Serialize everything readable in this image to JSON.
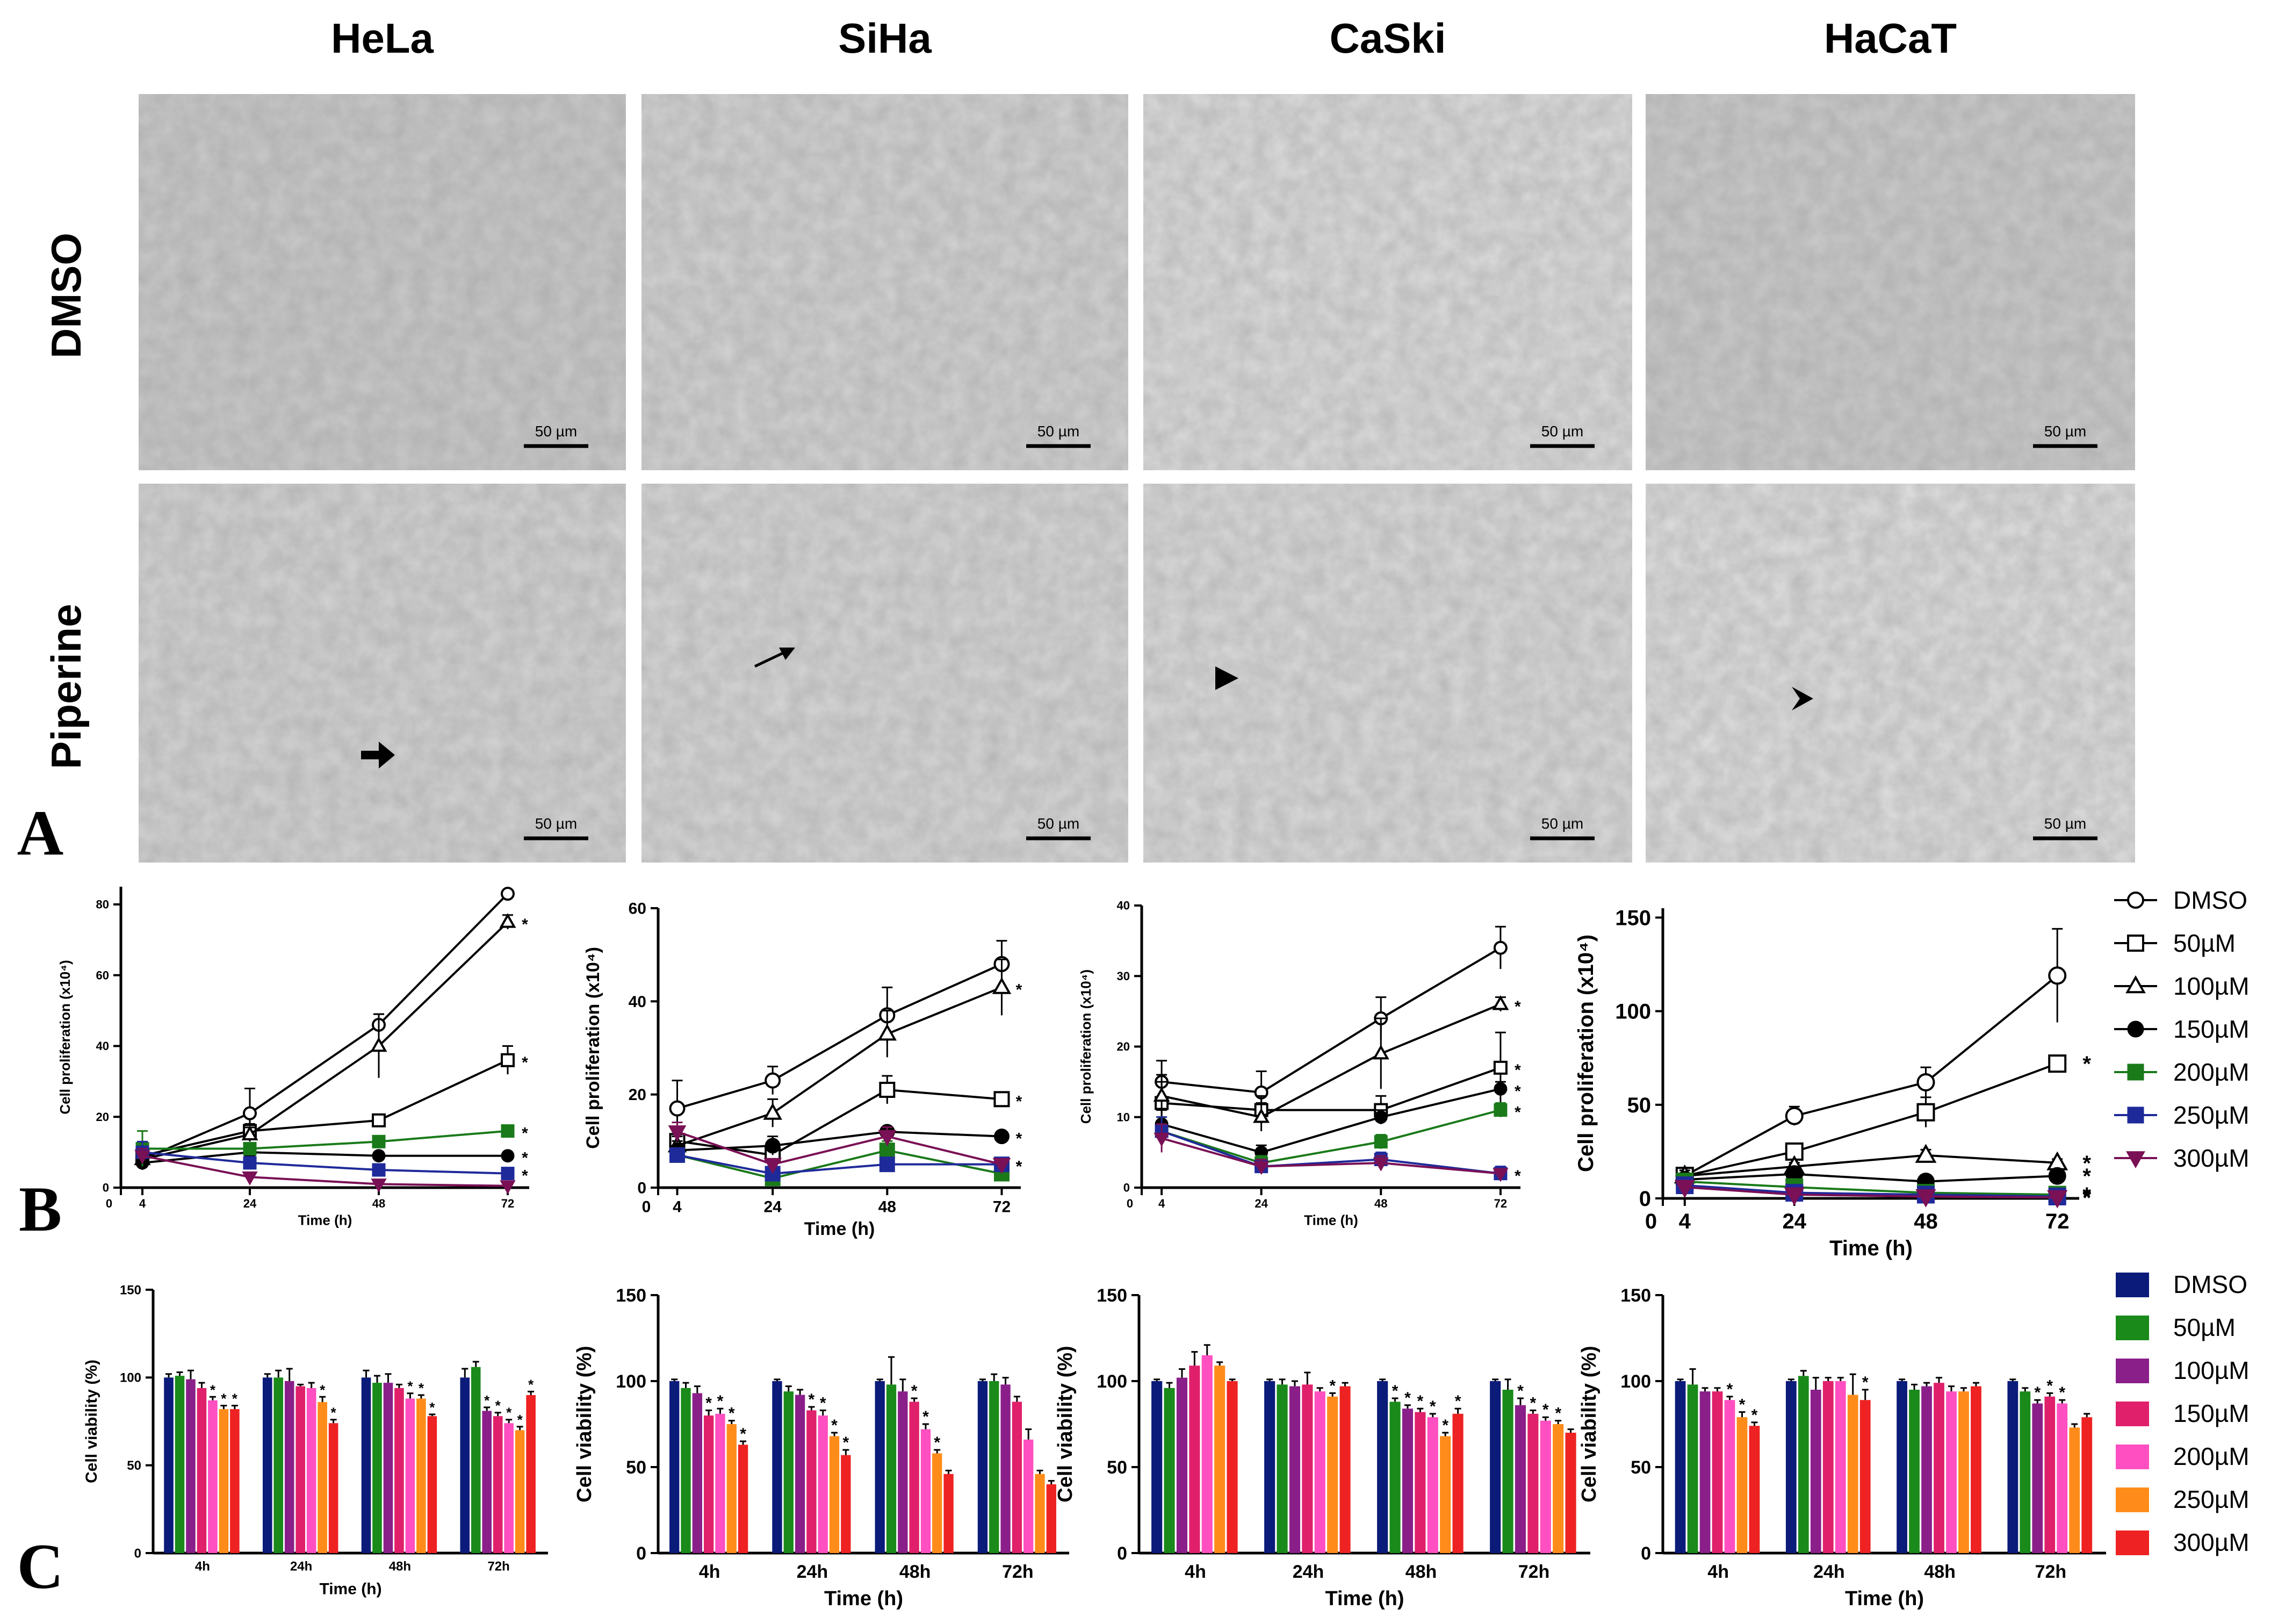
{
  "panel_letters": [
    "A",
    "B",
    "C"
  ],
  "cell_lines": [
    "HeLa",
    "SiHa",
    "CaSki",
    "HaCaT"
  ],
  "treatments": [
    "DMSO",
    "Piperine"
  ],
  "scale_bar_label": "50 µm",
  "colors": {
    "DMSO": "#000000",
    "c50": "#000000",
    "c100": "#000000",
    "c150": "#000000",
    "c200": "#1a7a1a",
    "c250": "#1f2a9a",
    "c300": "#7a1055",
    "bar_DMSO": "#0b1b7a",
    "bar_50": "#1a8a1a",
    "bar_100": "#8a1f8a",
    "bar_150": "#e0206a",
    "bar_200": "#ff4fc0",
    "bar_250": "#ff8c1a",
    "bar_300": "#ee2222"
  },
  "legend_line": [
    {
      "label": "DMSO",
      "marker": "circle-open",
      "color": "#000000"
    },
    {
      "label": "50µM",
      "marker": "square-open",
      "color": "#000000"
    },
    {
      "label": "100µM",
      "marker": "triangle-open",
      "color": "#000000"
    },
    {
      "label": "150µM",
      "marker": "circle",
      "color": "#000000"
    },
    {
      "label": "200µM",
      "marker": "square",
      "color": "#1a7a1a"
    },
    {
      "label": "250µM",
      "marker": "square",
      "color": "#1f2a9a"
    },
    {
      "label": "300µM",
      "marker": "triangle-down",
      "color": "#7a1055"
    }
  ],
  "legend_bar": [
    {
      "label": "DMSO",
      "color": "#0b1b7a"
    },
    {
      "label": "50µM",
      "color": "#1a8a1a"
    },
    {
      "label": "100µM",
      "color": "#8a1f8a"
    },
    {
      "label": "150µM",
      "color": "#e0206a"
    },
    {
      "label": "200µM",
      "color": "#ff4fc0"
    },
    {
      "label": "250µM",
      "color": "#ff8c1a"
    },
    {
      "label": "300µM",
      "color": "#ee2222"
    }
  ],
  "chart_data": [
    {
      "type": "line",
      "panel": "B",
      "cell_line": "HeLa",
      "xlabel": "Time (h)",
      "ylabel": "Cell proliferation (x10⁴)",
      "x": [
        4,
        24,
        48,
        72
      ],
      "x_ticks": [
        0,
        4,
        24,
        48,
        72
      ],
      "ylim": [
        0,
        85
      ],
      "y_ticks": [
        0,
        20,
        40,
        60,
        80
      ],
      "series": [
        {
          "name": "DMSO",
          "values": [
            8,
            21,
            46,
            83
          ],
          "err": [
            2,
            7,
            3,
            1
          ]
        },
        {
          "name": "50µM",
          "values": [
            9,
            16,
            19,
            36
          ],
          "err": [
            2,
            2,
            1,
            4
          ]
        },
        {
          "name": "100µM",
          "values": [
            8,
            15,
            40,
            75
          ],
          "err": [
            2,
            2,
            9,
            2
          ]
        },
        {
          "name": "150µM",
          "values": [
            7,
            10,
            9,
            9
          ],
          "err": [
            2,
            1,
            1,
            1
          ]
        },
        {
          "name": "200µM",
          "values": [
            11,
            11,
            13,
            16
          ],
          "err": [
            5,
            1,
            1,
            1
          ]
        },
        {
          "name": "250µM",
          "values": [
            10,
            7,
            5,
            4
          ],
          "err": [
            3,
            1,
            1,
            1
          ]
        },
        {
          "name": "300µM",
          "values": [
            9,
            3,
            1,
            0.5
          ],
          "err": [
            2,
            1,
            0.5,
            0.5
          ]
        }
      ],
      "annotations": [
        "*",
        "*",
        "*",
        "*",
        "*"
      ]
    },
    {
      "type": "line",
      "panel": "B",
      "cell_line": "SiHa",
      "xlabel": "Time (h)",
      "ylabel": "Cell proliferation (x10⁴)",
      "x": [
        4,
        24,
        48,
        72
      ],
      "x_ticks": [
        0,
        4,
        24,
        48,
        72
      ],
      "ylim": [
        0,
        60
      ],
      "y_ticks": [
        0,
        20,
        40,
        60
      ],
      "series": [
        {
          "name": "DMSO",
          "values": [
            17,
            23,
            37,
            48
          ],
          "err": [
            6,
            3,
            6,
            5
          ]
        },
        {
          "name": "50µM",
          "values": [
            10,
            7,
            21,
            19
          ],
          "err": [
            2,
            2,
            3,
            1
          ]
        },
        {
          "name": "100µM",
          "values": [
            9,
            16,
            33,
            43
          ],
          "err": [
            2,
            3,
            5,
            6
          ]
        },
        {
          "name": "150µM",
          "values": [
            8,
            9,
            12,
            11
          ],
          "err": [
            2,
            2,
            1,
            1
          ]
        },
        {
          "name": "200µM",
          "values": [
            7,
            2,
            8,
            3
          ],
          "err": [
            1,
            1,
            2,
            1
          ]
        },
        {
          "name": "250µM",
          "values": [
            7,
            3,
            5,
            5
          ],
          "err": [
            1,
            1,
            1,
            1
          ]
        },
        {
          "name": "300µM",
          "values": [
            12,
            5,
            11,
            5
          ],
          "err": [
            2,
            1,
            2,
            1
          ]
        }
      ],
      "annotations": [
        "*",
        "*",
        "*",
        "*",
        "*"
      ]
    },
    {
      "type": "line",
      "panel": "B",
      "cell_line": "CaSki",
      "xlabel": "Time (h)",
      "ylabel": "Cell proliferation (x10⁴)",
      "x": [
        4,
        24,
        48,
        72
      ],
      "x_ticks": [
        0,
        4,
        24,
        48,
        72
      ],
      "ylim": [
        0,
        40
      ],
      "y_ticks": [
        0,
        10,
        20,
        30,
        40
      ],
      "series": [
        {
          "name": "DMSO",
          "values": [
            15,
            13.5,
            24,
            34
          ],
          "err": [
            3,
            3,
            3,
            3
          ]
        },
        {
          "name": "50µM",
          "values": [
            12,
            11,
            11,
            17
          ],
          "err": [
            3,
            2,
            2,
            5
          ]
        },
        {
          "name": "100µM",
          "values": [
            13,
            10,
            19,
            26
          ],
          "err": [
            3,
            2,
            5,
            1
          ]
        },
        {
          "name": "150µM",
          "values": [
            9,
            5,
            10,
            14
          ],
          "err": [
            2,
            1,
            1,
            1
          ]
        },
        {
          "name": "200µM",
          "values": [
            8,
            3.5,
            6.5,
            11
          ],
          "err": [
            2,
            1,
            1,
            1
          ]
        },
        {
          "name": "250µM",
          "values": [
            8,
            3,
            4,
            2
          ],
          "err": [
            2,
            1,
            1,
            1
          ]
        },
        {
          "name": "300µM",
          "values": [
            7,
            3,
            3.5,
            2
          ],
          "err": [
            2,
            1,
            1,
            0.5
          ]
        }
      ],
      "annotations": [
        "*",
        "*",
        "*",
        "*",
        "*"
      ]
    },
    {
      "type": "line",
      "panel": "B",
      "cell_line": "HaCaT",
      "xlabel": "Time (h)",
      "ylabel": "Cell proliferation (x10⁴)",
      "x": [
        4,
        24,
        48,
        72
      ],
      "x_ticks": [
        0,
        4,
        24,
        48,
        72
      ],
      "ylim": [
        0,
        155
      ],
      "y_ticks": [
        0,
        50,
        100,
        150
      ],
      "series": [
        {
          "name": "DMSO",
          "values": [
            12,
            44,
            62,
            119
          ],
          "err": [
            4,
            5,
            8,
            25
          ]
        },
        {
          "name": "50µM",
          "values": [
            12,
            25,
            46,
            72
          ],
          "err": [
            3,
            2,
            8,
            4
          ]
        },
        {
          "name": "100µM",
          "values": [
            12,
            17,
            23,
            19
          ],
          "err": [
            3,
            2,
            3,
            2
          ]
        },
        {
          "name": "150µM",
          "values": [
            10,
            13,
            9,
            12
          ],
          "err": [
            2,
            1,
            1,
            1
          ]
        },
        {
          "name": "200µM",
          "values": [
            9,
            6,
            3,
            2
          ],
          "err": [
            2,
            1,
            1,
            1
          ]
        },
        {
          "name": "250µM",
          "values": [
            7,
            3,
            2,
            1
          ],
          "err": [
            2,
            1,
            1,
            1
          ]
        },
        {
          "name": "300µM",
          "values": [
            6,
            2,
            1,
            0.5
          ],
          "err": [
            2,
            1,
            0.5,
            0.5
          ]
        }
      ],
      "annotations": [
        "*",
        "*",
        "*",
        "*",
        "*",
        "*"
      ]
    },
    {
      "type": "bar",
      "panel": "C",
      "cell_line": "HeLa",
      "xlabel": "Time (h)",
      "ylabel": "Cell viability (%)",
      "categories": [
        "4h",
        "24h",
        "48h",
        "72h"
      ],
      "ylim": [
        0,
        150
      ],
      "y_ticks": [
        0,
        50,
        100,
        150
      ],
      "series": [
        {
          "name": "DMSO",
          "values": [
            100,
            100,
            100,
            100
          ],
          "err": [
            2,
            2,
            4,
            5
          ]
        },
        {
          "name": "50µM",
          "values": [
            101,
            100,
            97,
            106
          ],
          "err": [
            2,
            4,
            4,
            3
          ]
        },
        {
          "name": "100µM",
          "values": [
            99,
            98,
            97,
            81
          ],
          "err": [
            5,
            7,
            5,
            2
          ]
        },
        {
          "name": "150µM",
          "values": [
            94,
            95,
            94,
            78
          ],
          "err": [
            3,
            1,
            2,
            2
          ]
        },
        {
          "name": "200µM",
          "values": [
            87,
            94,
            88,
            74
          ],
          "err": [
            2,
            3,
            3,
            2
          ]
        },
        {
          "name": "250µM",
          "values": [
            82,
            86,
            88,
            70
          ],
          "err": [
            2,
            3,
            2,
            2
          ]
        },
        {
          "name": "300µM",
          "values": [
            82,
            74,
            78,
            90
          ],
          "err": [
            2,
            2,
            1,
            2
          ]
        }
      ],
      "annotations": [
        "*",
        "*",
        "*",
        "*",
        "*",
        "*",
        "*",
        "*",
        "*",
        "*",
        "*",
        "*",
        "*"
      ]
    },
    {
      "type": "bar",
      "panel": "C",
      "cell_line": "SiHa",
      "xlabel": "Time (h)",
      "ylabel": "Cell viability (%)",
      "categories": [
        "4h",
        "24h",
        "48h",
        "72h"
      ],
      "ylim": [
        0,
        150
      ],
      "y_ticks": [
        0,
        50,
        100,
        150
      ],
      "series": [
        {
          "name": "DMSO",
          "values": [
            100,
            100,
            100,
            100
          ],
          "err": [
            1,
            1,
            1,
            1
          ]
        },
        {
          "name": "50µM",
          "values": [
            96,
            94,
            98,
            100
          ],
          "err": [
            3,
            3,
            16,
            4
          ]
        },
        {
          "name": "100µM",
          "values": [
            93,
            92,
            94,
            98
          ],
          "err": [
            4,
            3,
            7,
            4
          ]
        },
        {
          "name": "150µM",
          "values": [
            80,
            83,
            88,
            88
          ],
          "err": [
            3,
            2,
            2,
            3
          ]
        },
        {
          "name": "200µM",
          "values": [
            81,
            80,
            72,
            66
          ],
          "err": [
            3,
            3,
            3,
            6
          ]
        },
        {
          "name": "250µM",
          "values": [
            75,
            68,
            58,
            46
          ],
          "err": [
            2,
            2,
            2,
            2
          ]
        },
        {
          "name": "300µM",
          "values": [
            63,
            57,
            46,
            40
          ],
          "err": [
            2,
            3,
            2,
            2
          ]
        }
      ],
      "annotations": [
        "*",
        "*",
        "*",
        "*",
        "*",
        "*",
        "*",
        "*",
        "*",
        "*",
        "*"
      ]
    },
    {
      "type": "bar",
      "panel": "C",
      "cell_line": "CaSki",
      "xlabel": "Time (h)",
      "ylabel": "Cell viability (%)",
      "categories": [
        "4h",
        "24h",
        "48h",
        "72h"
      ],
      "ylim": [
        0,
        150
      ],
      "y_ticks": [
        0,
        50,
        100,
        150
      ],
      "series": [
        {
          "name": "DMSO",
          "values": [
            100,
            100,
            100,
            100
          ],
          "err": [
            1,
            1,
            1,
            1
          ]
        },
        {
          "name": "50µM",
          "values": [
            96,
            98,
            88,
            95
          ],
          "err": [
            3,
            3,
            2,
            6
          ]
        },
        {
          "name": "100µM",
          "values": [
            102,
            97,
            84,
            86
          ],
          "err": [
            5,
            3,
            2,
            4
          ]
        },
        {
          "name": "150µM",
          "values": [
            109,
            98,
            82,
            81
          ],
          "err": [
            8,
            7,
            2,
            2
          ]
        },
        {
          "name": "200µM",
          "values": [
            115,
            94,
            79,
            77
          ],
          "err": [
            6,
            2,
            2,
            2
          ]
        },
        {
          "name": "250µM",
          "values": [
            109,
            91,
            68,
            75
          ],
          "err": [
            2,
            2,
            2,
            2
          ]
        },
        {
          "name": "300µM",
          "values": [
            100,
            97,
            81,
            70
          ],
          "err": [
            1,
            2,
            3,
            2
          ]
        }
      ],
      "annotations": [
        "*",
        "*",
        "*",
        "*",
        "*",
        "*",
        "*",
        "*",
        "*",
        "*",
        "*"
      ]
    },
    {
      "type": "bar",
      "panel": "C",
      "cell_line": "HaCaT",
      "xlabel": "Time (h)",
      "ylabel": "Cell viability (%)",
      "categories": [
        "4h",
        "24h",
        "48h",
        "72h"
      ],
      "ylim": [
        0,
        150
      ],
      "y_ticks": [
        0,
        50,
        100,
        150
      ],
      "series": [
        {
          "name": "DMSO",
          "values": [
            100,
            100,
            100,
            100
          ],
          "err": [
            1,
            1,
            1,
            1
          ]
        },
        {
          "name": "50µM",
          "values": [
            98,
            103,
            95,
            94
          ],
          "err": [
            9,
            3,
            3,
            2
          ]
        },
        {
          "name": "100µM",
          "values": [
            94,
            95,
            97,
            87
          ],
          "err": [
            2,
            7,
            2,
            2
          ]
        },
        {
          "name": "150µM",
          "values": [
            94,
            100,
            99,
            91
          ],
          "err": [
            2,
            2,
            3,
            2
          ]
        },
        {
          "name": "200µM",
          "values": [
            89,
            100,
            94,
            87
          ],
          "err": [
            2,
            2,
            3,
            2
          ]
        },
        {
          "name": "250µM",
          "values": [
            79,
            92,
            94,
            73
          ],
          "err": [
            3,
            12,
            2,
            2
          ]
        },
        {
          "name": "300µM",
          "values": [
            74,
            89,
            97,
            79
          ],
          "err": [
            2,
            6,
            2,
            2
          ]
        }
      ],
      "annotations": [
        "*",
        "*",
        "*",
        "*",
        "*",
        "*",
        "*"
      ]
    }
  ]
}
